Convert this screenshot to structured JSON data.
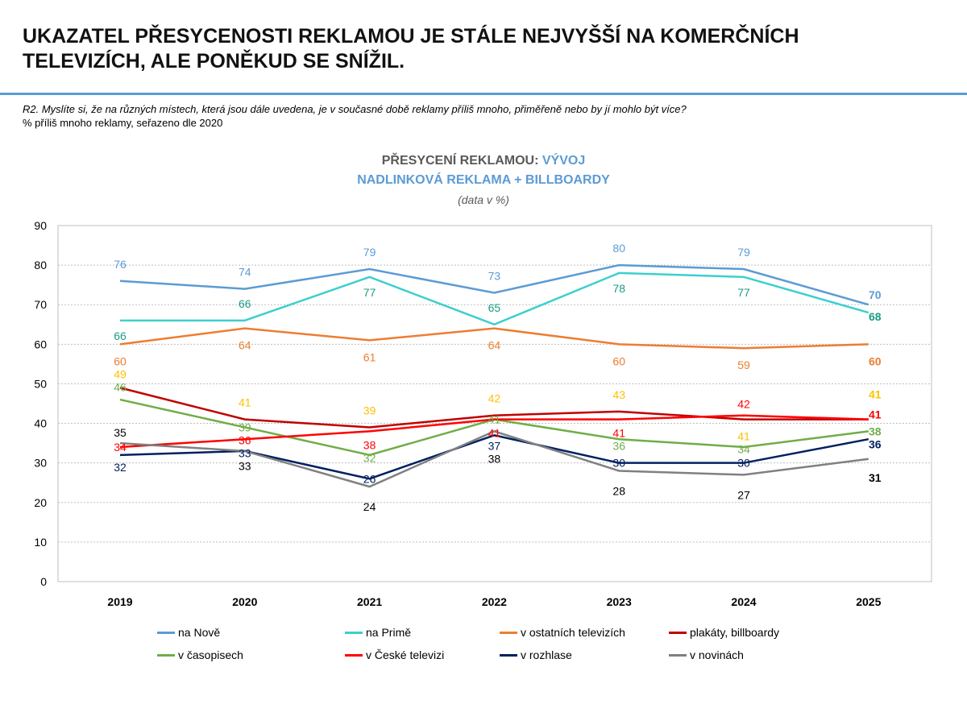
{
  "header": {
    "title": "UKAZATEL PŘESYCENOSTI REKLAMOU JE STÁLE NEJVYŠŠÍ NA KOMERČNÍCH TELEVIZÍCH, ALE PONĚKUD SE SNÍŽIL.",
    "question": "R2. Myslíte si, že na různých místech, která jsou dále uvedena, je v současné době reklamy příliš mnoho, přiměřeně nebo by jí mohlo být více?",
    "subtitle": "% příliš mnoho reklamy, seřazeno dle 2020"
  },
  "chart_data": {
    "type": "line",
    "title_part1": "PŘESYCENÍ REKLAMOU: ",
    "title_part2": "VÝVOJ",
    "title_line2": "NADLINKOVÁ REKLAMA + BILLBOARDY",
    "note": "(data v %)",
    "categories": [
      "2019",
      "2020",
      "2021",
      "2022",
      "2023",
      "2024",
      "2025"
    ],
    "ylim": [
      0,
      90
    ],
    "yticks": [
      0,
      10,
      20,
      30,
      40,
      50,
      60,
      70,
      80,
      90
    ],
    "grid": true,
    "legend": "bottom",
    "series": [
      {
        "name": "na Nově",
        "color": "#5B9BD5",
        "label_color": "#5B9BD5",
        "values": [
          76,
          74,
          79,
          73,
          80,
          79,
          70
        ]
      },
      {
        "name": "na Primě",
        "color": "#3CCFCF",
        "label_color": "#1A9C84",
        "values": [
          66,
          66,
          77,
          65,
          78,
          77,
          68
        ]
      },
      {
        "name": "v ostatních televizích",
        "color": "#ED7D31",
        "label_color": "#ED7D31",
        "values": [
          60,
          64,
          61,
          64,
          60,
          59,
          60
        ]
      },
      {
        "name": "plakáty, billboardy",
        "color": "#C00000",
        "label_color": "#FFC000",
        "values": [
          49,
          41,
          39,
          42,
          43,
          41,
          41
        ]
      },
      {
        "name": "v časopisech",
        "color": "#70AD47",
        "label_color": "#70AD47",
        "values": [
          46,
          39,
          32,
          41,
          36,
          34,
          38
        ]
      },
      {
        "name": "v České televizi",
        "color": "#FF0000",
        "label_color": "#FF0000",
        "values": [
          34,
          36,
          38,
          41,
          41,
          42,
          41
        ]
      },
      {
        "name": "v rozhlase",
        "color": "#002060",
        "label_color": "#002060",
        "values": [
          32,
          33,
          26,
          37,
          30,
          30,
          36
        ]
      },
      {
        "name": "v novinách",
        "color": "#808080",
        "label_color": "#000000",
        "values": [
          35,
          33,
          24,
          38,
          28,
          27,
          31
        ]
      }
    ]
  }
}
